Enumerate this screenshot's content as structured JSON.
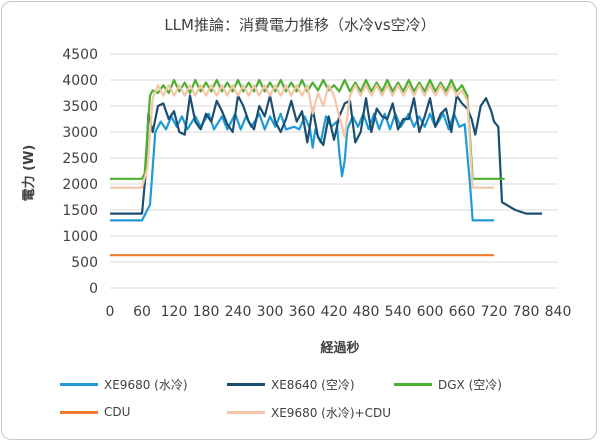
{
  "chart_data": {
    "type": "line",
    "title": "LLM推論：消費電力推移（水冷vs空冷）",
    "xlabel": "経過秒",
    "ylabel": "電力 (W)",
    "xlim": [
      0,
      840
    ],
    "ylim": [
      0,
      4500
    ],
    "x_ticks": [
      0,
      60,
      120,
      180,
      240,
      300,
      360,
      420,
      480,
      540,
      600,
      660,
      720,
      780,
      840
    ],
    "y_ticks": [
      0,
      500,
      1000,
      1500,
      2000,
      2500,
      3000,
      3500,
      4000,
      4500
    ],
    "grid": "horizontal",
    "legend_position": "bottom",
    "series": [
      {
        "name": "XE9680 (水冷)",
        "color": "#1f9ad6",
        "points": [
          [
            0,
            1300
          ],
          [
            60,
            1300
          ],
          [
            75,
            1600
          ],
          [
            85,
            3000
          ],
          [
            95,
            3200
          ],
          [
            105,
            3050
          ],
          [
            115,
            3300
          ],
          [
            125,
            3100
          ],
          [
            135,
            3300
          ],
          [
            145,
            3050
          ],
          [
            160,
            3300
          ],
          [
            170,
            3100
          ],
          [
            185,
            3350
          ],
          [
            195,
            3050
          ],
          [
            210,
            3300
          ],
          [
            220,
            3050
          ],
          [
            235,
            3350
          ],
          [
            245,
            3050
          ],
          [
            255,
            3300
          ],
          [
            265,
            3100
          ],
          [
            280,
            3350
          ],
          [
            290,
            3050
          ],
          [
            300,
            3300
          ],
          [
            310,
            3100
          ],
          [
            320,
            3350
          ],
          [
            330,
            3050
          ],
          [
            345,
            3100
          ],
          [
            355,
            3050
          ],
          [
            365,
            3300
          ],
          [
            375,
            3050
          ],
          [
            380,
            2700
          ],
          [
            385,
            3050
          ],
          [
            395,
            2800
          ],
          [
            405,
            3300
          ],
          [
            415,
            3100
          ],
          [
            425,
            3200
          ],
          [
            430,
            2600
          ],
          [
            435,
            2150
          ],
          [
            440,
            2450
          ],
          [
            445,
            3050
          ],
          [
            455,
            3300
          ],
          [
            465,
            3100
          ],
          [
            475,
            3350
          ],
          [
            485,
            3050
          ],
          [
            495,
            3350
          ],
          [
            505,
            3050
          ],
          [
            515,
            3350
          ],
          [
            525,
            3050
          ],
          [
            535,
            3350
          ],
          [
            545,
            3100
          ],
          [
            560,
            3350
          ],
          [
            570,
            3100
          ],
          [
            580,
            3300
          ],
          [
            590,
            3100
          ],
          [
            600,
            3350
          ],
          [
            610,
            3100
          ],
          [
            625,
            3350
          ],
          [
            635,
            3050
          ],
          [
            645,
            3350
          ],
          [
            655,
            3100
          ],
          [
            665,
            3150
          ],
          [
            675,
            2000
          ],
          [
            680,
            1300
          ],
          [
            720,
            1300
          ]
        ]
      },
      {
        "name": "XE8640 (空冷)",
        "color": "#1b4f72",
        "points": [
          [
            0,
            1430
          ],
          [
            60,
            1430
          ],
          [
            66,
            2100
          ],
          [
            72,
            3350
          ],
          [
            80,
            3000
          ],
          [
            90,
            3500
          ],
          [
            100,
            3550
          ],
          [
            110,
            3250
          ],
          [
            120,
            3400
          ],
          [
            130,
            3000
          ],
          [
            140,
            2950
          ],
          [
            150,
            3700
          ],
          [
            160,
            3200
          ],
          [
            170,
            3050
          ],
          [
            180,
            3350
          ],
          [
            190,
            3200
          ],
          [
            200,
            3600
          ],
          [
            210,
            3400
          ],
          [
            220,
            3150
          ],
          [
            230,
            3000
          ],
          [
            240,
            3700
          ],
          [
            250,
            3500
          ],
          [
            260,
            3200
          ],
          [
            270,
            3050
          ],
          [
            280,
            3500
          ],
          [
            290,
            3300
          ],
          [
            300,
            3700
          ],
          [
            310,
            3200
          ],
          [
            320,
            3000
          ],
          [
            330,
            3250
          ],
          [
            340,
            3600
          ],
          [
            350,
            3200
          ],
          [
            360,
            3400
          ],
          [
            370,
            2800
          ],
          [
            380,
            3450
          ],
          [
            390,
            2900
          ],
          [
            400,
            2750
          ],
          [
            410,
            3300
          ],
          [
            420,
            2850
          ],
          [
            430,
            3300
          ],
          [
            440,
            3550
          ],
          [
            450,
            3600
          ],
          [
            460,
            2800
          ],
          [
            470,
            3000
          ],
          [
            480,
            3650
          ],
          [
            490,
            3000
          ],
          [
            500,
            3450
          ],
          [
            510,
            3300
          ],
          [
            520,
            3250
          ],
          [
            530,
            3550
          ],
          [
            540,
            3050
          ],
          [
            550,
            3250
          ],
          [
            560,
            3250
          ],
          [
            570,
            3650
          ],
          [
            580,
            3000
          ],
          [
            590,
            3300
          ],
          [
            600,
            3650
          ],
          [
            610,
            3100
          ],
          [
            620,
            3350
          ],
          [
            630,
            3450
          ],
          [
            640,
            3000
          ],
          [
            650,
            3700
          ],
          [
            660,
            3550
          ],
          [
            670,
            3450
          ],
          [
            678,
            3250
          ],
          [
            685,
            2950
          ],
          [
            695,
            3500
          ],
          [
            705,
            3650
          ],
          [
            715,
            3400
          ],
          [
            720,
            3200
          ],
          [
            728,
            3100
          ],
          [
            735,
            1650
          ],
          [
            760,
            1500
          ],
          [
            780,
            1430
          ],
          [
            810,
            1430
          ]
        ]
      },
      {
        "name": "DGX (空冷)",
        "color": "#4caf2e",
        "points": [
          [
            0,
            2100
          ],
          [
            60,
            2100
          ],
          [
            65,
            2200
          ],
          [
            75,
            3700
          ],
          [
            80,
            3800
          ],
          [
            90,
            3750
          ],
          [
            100,
            3900
          ],
          [
            110,
            3750
          ],
          [
            120,
            4000
          ],
          [
            130,
            3780
          ],
          [
            140,
            3950
          ],
          [
            150,
            3750
          ],
          [
            160,
            4000
          ],
          [
            170,
            3780
          ],
          [
            180,
            3950
          ],
          [
            190,
            3780
          ],
          [
            200,
            4000
          ],
          [
            210,
            3780
          ],
          [
            220,
            3950
          ],
          [
            230,
            3780
          ],
          [
            240,
            4000
          ],
          [
            250,
            3780
          ],
          [
            260,
            3950
          ],
          [
            270,
            3780
          ],
          [
            280,
            4000
          ],
          [
            290,
            3780
          ],
          [
            300,
            3950
          ],
          [
            310,
            3780
          ],
          [
            320,
            4000
          ],
          [
            330,
            3780
          ],
          [
            340,
            3950
          ],
          [
            350,
            3780
          ],
          [
            360,
            4000
          ],
          [
            370,
            3780
          ],
          [
            380,
            3950
          ],
          [
            390,
            3800
          ],
          [
            400,
            4000
          ],
          [
            410,
            3800
          ],
          [
            420,
            3900
          ],
          [
            430,
            3780
          ],
          [
            440,
            4000
          ],
          [
            450,
            3780
          ],
          [
            460,
            3950
          ],
          [
            470,
            3780
          ],
          [
            480,
            4000
          ],
          [
            490,
            3780
          ],
          [
            500,
            3950
          ],
          [
            510,
            3780
          ],
          [
            520,
            4000
          ],
          [
            530,
            3780
          ],
          [
            540,
            3950
          ],
          [
            550,
            3780
          ],
          [
            560,
            4000
          ],
          [
            570,
            3780
          ],
          [
            580,
            3950
          ],
          [
            590,
            3780
          ],
          [
            600,
            4000
          ],
          [
            610,
            3780
          ],
          [
            620,
            3950
          ],
          [
            630,
            3780
          ],
          [
            640,
            4000
          ],
          [
            650,
            3780
          ],
          [
            660,
            3900
          ],
          [
            670,
            3700
          ],
          [
            680,
            2100
          ],
          [
            740,
            2100
          ]
        ]
      },
      {
        "name": "CDU",
        "color": "#f07a30",
        "points": [
          [
            0,
            630
          ],
          [
            720,
            630
          ]
        ]
      },
      {
        "name": "XE9680 (水冷)+CDU",
        "color": "#f4c6a8",
        "points": [
          [
            0,
            1930
          ],
          [
            60,
            1930
          ],
          [
            70,
            2300
          ],
          [
            80,
            3650
          ],
          [
            90,
            3900
          ],
          [
            100,
            3700
          ],
          [
            110,
            3900
          ],
          [
            120,
            3700
          ],
          [
            130,
            3900
          ],
          [
            140,
            3700
          ],
          [
            150,
            3900
          ],
          [
            160,
            3700
          ],
          [
            170,
            3900
          ],
          [
            180,
            3700
          ],
          [
            190,
            3900
          ],
          [
            200,
            3700
          ],
          [
            210,
            3900
          ],
          [
            220,
            3700
          ],
          [
            230,
            3900
          ],
          [
            240,
            3700
          ],
          [
            250,
            3900
          ],
          [
            260,
            3700
          ],
          [
            270,
            3900
          ],
          [
            280,
            3700
          ],
          [
            290,
            3900
          ],
          [
            300,
            3700
          ],
          [
            310,
            3900
          ],
          [
            320,
            3700
          ],
          [
            330,
            3900
          ],
          [
            340,
            3700
          ],
          [
            350,
            3900
          ],
          [
            360,
            3700
          ],
          [
            370,
            3900
          ],
          [
            380,
            3350
          ],
          [
            390,
            3750
          ],
          [
            400,
            3500
          ],
          [
            410,
            3900
          ],
          [
            420,
            3700
          ],
          [
            430,
            3300
          ],
          [
            440,
            2900
          ],
          [
            450,
            3700
          ],
          [
            460,
            3900
          ],
          [
            470,
            3700
          ],
          [
            480,
            3900
          ],
          [
            490,
            3700
          ],
          [
            500,
            3900
          ],
          [
            510,
            3700
          ],
          [
            520,
            3900
          ],
          [
            530,
            3700
          ],
          [
            540,
            3900
          ],
          [
            550,
            3700
          ],
          [
            560,
            3900
          ],
          [
            570,
            3700
          ],
          [
            580,
            3900
          ],
          [
            590,
            3700
          ],
          [
            600,
            3900
          ],
          [
            610,
            3700
          ],
          [
            620,
            3900
          ],
          [
            630,
            3700
          ],
          [
            640,
            3900
          ],
          [
            650,
            3700
          ],
          [
            660,
            3800
          ],
          [
            670,
            3600
          ],
          [
            680,
            1930
          ],
          [
            720,
            1930
          ]
        ]
      }
    ]
  }
}
